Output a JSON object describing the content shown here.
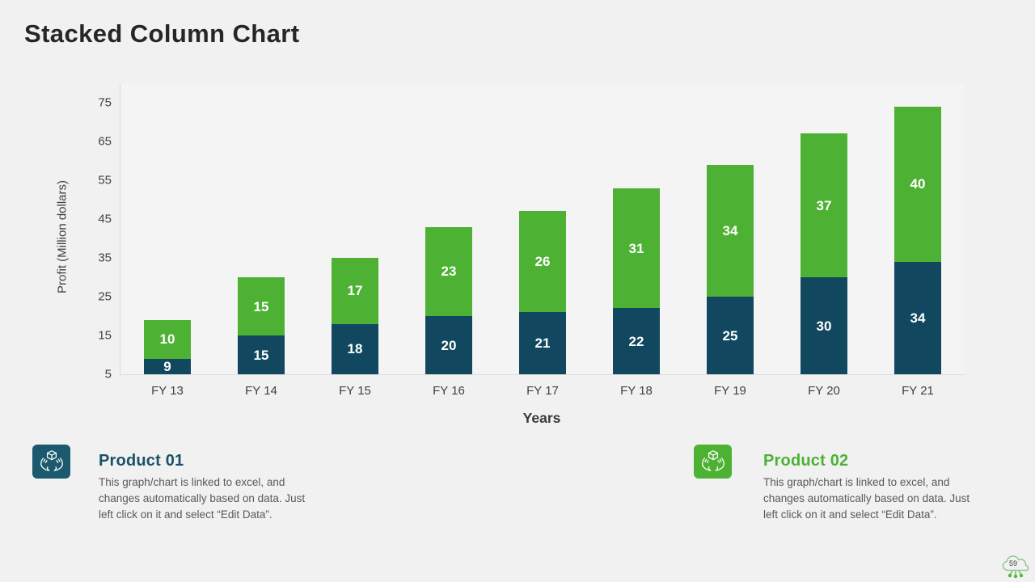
{
  "page": {
    "title": "Stacked Column Chart",
    "background_color": "#f0f1f0",
    "badge_number": "59"
  },
  "chart_data": {
    "type": "bar",
    "stacked": true,
    "title": "Stacked Column Chart",
    "categories": [
      "FY 13",
      "FY 14",
      "FY 15",
      "FY 16",
      "FY 17",
      "FY 18",
      "FY 19",
      "FY 20",
      "FY 21"
    ],
    "series": [
      {
        "name": "Product 01",
        "color": "#11485f",
        "values": [
          9,
          15,
          18,
          20,
          21,
          22,
          25,
          30,
          34
        ]
      },
      {
        "name": "Product 02",
        "color": "#4db233",
        "values": [
          10,
          15,
          17,
          23,
          26,
          31,
          34,
          37,
          40
        ]
      }
    ],
    "xlabel": "Years",
    "ylabel": "Profit (Million dollars)",
    "ylim": [
      5,
      80
    ],
    "yticks": [
      5,
      15,
      25,
      35,
      45,
      55,
      65,
      75
    ],
    "grid": false,
    "legend_position": "none",
    "value_labels": "inside",
    "value_label_color": "#ffffff"
  },
  "products": [
    {
      "title": "Product 01",
      "accent_color": "#1b5168",
      "icon_bg_color": "#1b5a6e",
      "icon": "hands-holding-box-icon",
      "description": "This graph/chart is linked to excel, and\nchanges automatically based on data. Just\nleft click on it and select “Edit Data”."
    },
    {
      "title": "Product 02",
      "accent_color": "#4db233",
      "icon_bg_color": "#4db233",
      "icon": "hands-holding-box-icon",
      "description": "This graph/chart is linked to excel, and\nchanges automatically based on data. Just\nleft click on it and select “Edit Data”."
    }
  ]
}
